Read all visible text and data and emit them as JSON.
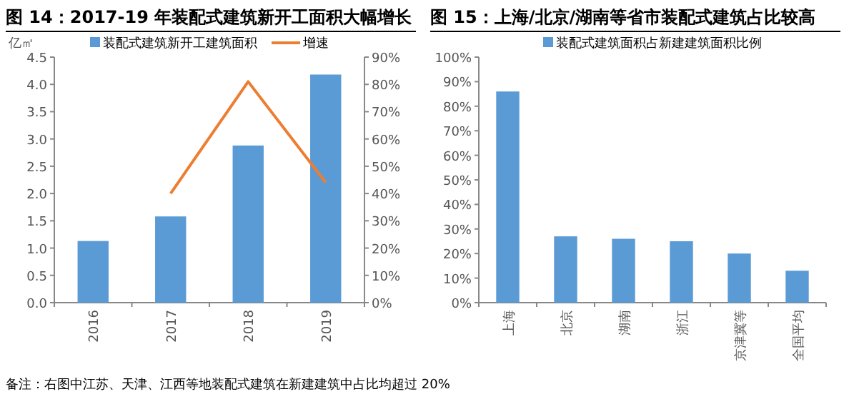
{
  "chart_data": [
    {
      "type": "bar",
      "title": "图 14：2017-19 年装配式建筑新开工面积大幅增长",
      "ylabel": "亿㎡",
      "categories": [
        "2016",
        "2017",
        "2018",
        "2019"
      ],
      "series": [
        {
          "name": "装配式建筑新开工建筑面积",
          "color": "#5b9bd5",
          "values": [
            1.13,
            1.58,
            2.88,
            4.18
          ]
        },
        {
          "name": "增速",
          "type": "line",
          "axis": "y2",
          "color": "#ed7d31",
          "values": [
            null,
            40,
            81,
            44
          ]
        }
      ],
      "ylim": [
        0,
        4.5
      ],
      "yticks": [
        {
          "value": 0,
          "label": "0.0"
        },
        0.5,
        {
          "value": 1,
          "label": "1.0"
        },
        1.5,
        {
          "value": 2,
          "label": "2.0"
        },
        2.5,
        {
          "value": 3,
          "label": "3.0"
        },
        3.5,
        {
          "value": 4,
          "label": "4.0"
        },
        4.5
      ],
      "y2lim": [
        0,
        90
      ],
      "y2ticks": [
        {
          "value": 0,
          "label": "0%"
        },
        {
          "value": 10,
          "label": "10%"
        },
        {
          "value": 20,
          "label": "20%"
        },
        {
          "value": 30,
          "label": "30%"
        },
        {
          "value": 40,
          "label": "40%"
        },
        {
          "value": 50,
          "label": "50%"
        },
        {
          "value": 60,
          "label": "60%"
        },
        {
          "value": 70,
          "label": "70%"
        },
        {
          "value": 80,
          "label": "80%"
        },
        {
          "value": 90,
          "label": "90%"
        }
      ],
      "legend": "top",
      "annotations": [
        "备注：右图中江苏、天津、江西等地装配式建筑在新建建筑中占比均超过 20%"
      ]
    },
    {
      "type": "bar",
      "title": "图 15：上海/北京/湖南等省市装配式建筑占比较高",
      "categories": [
        "上海",
        "北京",
        "湖南",
        "浙江",
        "京津冀等",
        "全国平均"
      ],
      "series": [
        {
          "name": "装配式建筑面积占新建建筑面积比例",
          "color": "#5b9bd5",
          "values": [
            86,
            27,
            26,
            25,
            20,
            13
          ]
        }
      ],
      "ylim": [
        0,
        100
      ],
      "yticks": [
        {
          "value": 0,
          "label": "0%"
        },
        {
          "value": 10,
          "label": "10%"
        },
        {
          "value": 20,
          "label": "20%"
        },
        {
          "value": 30,
          "label": "30%"
        },
        {
          "value": 40,
          "label": "40%"
        },
        {
          "value": 50,
          "label": "50%"
        },
        {
          "value": 60,
          "label": "60%"
        },
        {
          "value": 70,
          "label": "70%"
        },
        {
          "value": 80,
          "label": "80%"
        },
        {
          "value": 90,
          "label": "90%"
        },
        {
          "value": 100,
          "label": "100%"
        }
      ],
      "legend": "top"
    }
  ]
}
